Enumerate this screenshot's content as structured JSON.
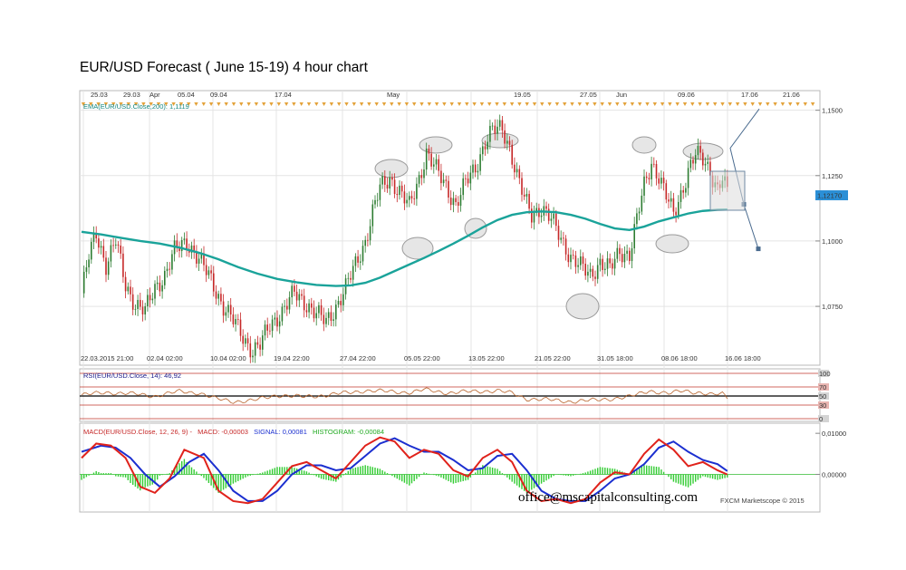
{
  "title": "EUR/USD Forecast ( June 15-19) 4 hour chart",
  "email": "office@mscapitalconsulting.com",
  "credit": "FXCM Marketscope © 2015",
  "colors": {
    "bull": "#2e7d32",
    "bear": "#c62828",
    "ema": "#1aa39a",
    "rsi": "#b8632b",
    "macd": "#e0221b",
    "signal": "#1b2fd0",
    "histogram": "#33cc33",
    "grid": "#e4e4e4",
    "marker": "#e3a23a",
    "projection": "#4a6b8f",
    "last_price_bg": "#2b8fd6"
  },
  "chart_data": [
    {
      "type": "candlestick",
      "panel": "price",
      "indicator_label": "EMA(EUR/USD.Close,200): 1,1119",
      "top_dates": [
        "25.03",
        "29.03",
        "Apr",
        "05.04",
        "09.04",
        "17.04",
        "May",
        "19.05",
        "27.05",
        "Jun",
        "09.06",
        "17.06",
        "21.06"
      ],
      "bottom_dates": [
        "22.03.2015 21:00",
        "02.04 02:00",
        "10.04 02:00",
        "19.04 22:00",
        "27.04 22:00",
        "05.05 22:00",
        "13.05 22:00",
        "21.05 22:00",
        "31.05 18:00",
        "08.06 18:00",
        "16.06 18:00"
      ],
      "y_ticks": [
        "1,1500",
        "1,1250",
        "1,1000",
        "1,0750"
      ],
      "last_price": "1,12170",
      "ylim": [
        1.0525,
        1.1575
      ],
      "close_path": [
        [
          0,
          1.08
        ],
        [
          3,
          1.094
        ],
        [
          6,
          1.103
        ],
        [
          10,
          1.091
        ],
        [
          14,
          1.1
        ],
        [
          18,
          1.083
        ],
        [
          22,
          1.076
        ],
        [
          26,
          1.073
        ],
        [
          30,
          1.082
        ],
        [
          34,
          1.087
        ],
        [
          38,
          1.096
        ],
        [
          43,
          1.1
        ],
        [
          48,
          1.093
        ],
        [
          53,
          1.085
        ],
        [
          58,
          1.075
        ],
        [
          63,
          1.068
        ],
        [
          67,
          1.062
        ],
        [
          70,
          1.058
        ],
        [
          73,
          1.06
        ],
        [
          77,
          1.068
        ],
        [
          82,
          1.073
        ],
        [
          87,
          1.08
        ],
        [
          92,
          1.076
        ],
        [
          96,
          1.072
        ],
        [
          100,
          1.069
        ],
        [
          104,
          1.075
        ],
        [
          108,
          1.082
        ],
        [
          112,
          1.091
        ],
        [
          116,
          1.1
        ],
        [
          119,
          1.111
        ],
        [
          122,
          1.12
        ],
        [
          126,
          1.124
        ],
        [
          130,
          1.119
        ],
        [
          134,
          1.113
        ],
        [
          138,
          1.124
        ],
        [
          141,
          1.134
        ],
        [
          145,
          1.127
        ],
        [
          149,
          1.121
        ],
        [
          153,
          1.114
        ],
        [
          157,
          1.122
        ],
        [
          161,
          1.128
        ],
        [
          165,
          1.138
        ],
        [
          168,
          1.142
        ],
        [
          172,
          1.143
        ],
        [
          175,
          1.136
        ],
        [
          178,
          1.125
        ],
        [
          181,
          1.116
        ],
        [
          184,
          1.11
        ],
        [
          188,
          1.113
        ],
        [
          192,
          1.108
        ],
        [
          196,
          1.101
        ],
        [
          200,
          1.094
        ],
        [
          204,
          1.09
        ],
        [
          208,
          1.087
        ],
        [
          212,
          1.092
        ],
        [
          216,
          1.089
        ],
        [
          220,
          1.096
        ],
        [
          224,
          1.095
        ],
        [
          227,
          1.108
        ],
        [
          230,
          1.121
        ],
        [
          233,
          1.13
        ],
        [
          236,
          1.125
        ],
        [
          239,
          1.117
        ],
        [
          242,
          1.11
        ],
        [
          245,
          1.118
        ],
        [
          248,
          1.127
        ],
        [
          251,
          1.133
        ],
        [
          254,
          1.131
        ],
        [
          257,
          1.127
        ],
        [
          260,
          1.12
        ],
        [
          262,
          1.124
        ],
        [
          264,
          1.118
        ]
      ],
      "ema_path": [
        [
          0,
          1.1035
        ],
        [
          8,
          1.1025
        ],
        [
          16,
          1.1012
        ],
        [
          24,
          1.1
        ],
        [
          32,
          1.099
        ],
        [
          40,
          1.0975
        ],
        [
          48,
          1.0955
        ],
        [
          56,
          1.093
        ],
        [
          64,
          1.09
        ],
        [
          72,
          1.0875
        ],
        [
          80,
          1.0855
        ],
        [
          88,
          1.0842
        ],
        [
          96,
          1.0832
        ],
        [
          104,
          1.0828
        ],
        [
          110,
          1.083
        ],
        [
          116,
          1.084
        ],
        [
          122,
          1.086
        ],
        [
          128,
          1.0885
        ],
        [
          134,
          1.091
        ],
        [
          140,
          1.0935
        ],
        [
          146,
          1.0962
        ],
        [
          152,
          1.099
        ],
        [
          158,
          1.102
        ],
        [
          164,
          1.1052
        ],
        [
          170,
          1.108
        ],
        [
          176,
          1.11
        ],
        [
          182,
          1.111
        ],
        [
          188,
          1.1113
        ],
        [
          194,
          1.111
        ],
        [
          200,
          1.11
        ],
        [
          206,
          1.1085
        ],
        [
          212,
          1.1065
        ],
        [
          218,
          1.1048
        ],
        [
          224,
          1.1042
        ],
        [
          230,
          1.1055
        ],
        [
          236,
          1.1075
        ],
        [
          242,
          1.109
        ],
        [
          248,
          1.1105
        ],
        [
          254,
          1.1115
        ],
        [
          260,
          1.1119
        ],
        [
          264,
          1.112
        ]
      ],
      "projection": [
        [
          1.1505
        ],
        [
          1.1355
        ],
        [
          1.114
        ],
        [
          1.097
        ]
      ]
    },
    {
      "type": "line",
      "panel": "rsi",
      "label": "RSI(EUR/USD.Close, 14): 46,92",
      "y_ticks": [
        "100",
        "70",
        "50",
        "30",
        "0"
      ],
      "ylim": [
        0,
        100
      ],
      "levels": [
        70,
        50,
        30
      ],
      "path": [
        [
          0,
          52
        ],
        [
          10,
          58
        ],
        [
          20,
          55
        ],
        [
          30,
          50
        ],
        [
          40,
          60
        ],
        [
          48,
          57
        ],
        [
          55,
          44
        ],
        [
          62,
          38
        ],
        [
          70,
          40
        ],
        [
          80,
          52
        ],
        [
          90,
          48
        ],
        [
          100,
          52
        ],
        [
          110,
          58
        ],
        [
          116,
          62
        ],
        [
          125,
          60
        ],
        [
          135,
          58
        ],
        [
          140,
          64
        ],
        [
          150,
          57
        ],
        [
          160,
          60
        ],
        [
          170,
          62
        ],
        [
          176,
          56
        ],
        [
          182,
          44
        ],
        [
          190,
          42
        ],
        [
          200,
          38
        ],
        [
          208,
          40
        ],
        [
          216,
          44
        ],
        [
          224,
          48
        ],
        [
          232,
          62
        ],
        [
          240,
          55
        ],
        [
          246,
          62
        ],
        [
          252,
          58
        ],
        [
          258,
          52
        ],
        [
          262,
          55
        ],
        [
          264,
          46.92
        ]
      ]
    },
    {
      "type": "line",
      "panel": "macd",
      "label": "MACD(EUR/USD.Close, 12, 26, 9) -",
      "macd_label": "MACD: -0,00003",
      "signal_label": "SIGNAL: 0,00081",
      "histogram_label": "HISTOGRAM: -0,00084",
      "y_ticks": [
        "0,01000",
        "0,00000"
      ],
      "ylim": [
        -0.0085,
        0.0118
      ],
      "macd": [
        [
          0,
          0.004
        ],
        [
          6,
          0.0075
        ],
        [
          12,
          0.007
        ],
        [
          18,
          0.004
        ],
        [
          24,
          -0.003
        ],
        [
          30,
          -0.0045
        ],
        [
          36,
          -0.001
        ],
        [
          42,
          0.006
        ],
        [
          50,
          0.004
        ],
        [
          56,
          -0.004
        ],
        [
          62,
          -0.0065
        ],
        [
          68,
          -0.007
        ],
        [
          74,
          -0.006
        ],
        [
          80,
          -0.002
        ],
        [
          86,
          0.002
        ],
        [
          92,
          0.003
        ],
        [
          98,
          0.001
        ],
        [
          104,
          -0.001
        ],
        [
          110,
          0.003
        ],
        [
          116,
          0.007
        ],
        [
          122,
          0.009
        ],
        [
          128,
          0.008
        ],
        [
          134,
          0.004
        ],
        [
          140,
          0.006
        ],
        [
          146,
          0.005
        ],
        [
          152,
          0.001
        ],
        [
          158,
          -0.0005
        ],
        [
          164,
          0.004
        ],
        [
          170,
          0.006
        ],
        [
          176,
          0.003
        ],
        [
          182,
          -0.004
        ],
        [
          188,
          -0.0065
        ],
        [
          194,
          -0.006
        ],
        [
          200,
          -0.007
        ],
        [
          206,
          -0.006
        ],
        [
          212,
          -0.002
        ],
        [
          218,
          0.0005
        ],
        [
          224,
          0.0
        ],
        [
          230,
          0.005
        ],
        [
          236,
          0.0085
        ],
        [
          242,
          0.006
        ],
        [
          248,
          0.002
        ],
        [
          254,
          0.003
        ],
        [
          260,
          0.001
        ],
        [
          264,
          -3e-05
        ]
      ],
      "signal": [
        [
          0,
          0.0055
        ],
        [
          8,
          0.007
        ],
        [
          14,
          0.0065
        ],
        [
          20,
          0.004
        ],
        [
          26,
          0.0
        ],
        [
          32,
          -0.003
        ],
        [
          38,
          -0.0005
        ],
        [
          44,
          0.003
        ],
        [
          50,
          0.005
        ],
        [
          56,
          0.001
        ],
        [
          62,
          -0.004
        ],
        [
          68,
          -0.0065
        ],
        [
          74,
          -0.0065
        ],
        [
          80,
          -0.004
        ],
        [
          86,
          0.0
        ],
        [
          92,
          0.0022
        ],
        [
          98,
          0.0022
        ],
        [
          104,
          0.001
        ],
        [
          110,
          0.0015
        ],
        [
          116,
          0.0045
        ],
        [
          122,
          0.0075
        ],
        [
          128,
          0.0088
        ],
        [
          134,
          0.007
        ],
        [
          140,
          0.0055
        ],
        [
          146,
          0.0055
        ],
        [
          152,
          0.0035
        ],
        [
          158,
          0.001
        ],
        [
          164,
          0.0015
        ],
        [
          170,
          0.0045
        ],
        [
          176,
          0.005
        ],
        [
          182,
          0.001
        ],
        [
          188,
          -0.004
        ],
        [
          194,
          -0.006
        ],
        [
          200,
          -0.0065
        ],
        [
          206,
          -0.0065
        ],
        [
          212,
          -0.004
        ],
        [
          218,
          -0.001
        ],
        [
          224,
          0.0
        ],
        [
          230,
          0.0025
        ],
        [
          236,
          0.0065
        ],
        [
          242,
          0.008
        ],
        [
          248,
          0.0055
        ],
        [
          254,
          0.0035
        ],
        [
          260,
          0.0025
        ],
        [
          264,
          0.00081
        ]
      ]
    }
  ]
}
